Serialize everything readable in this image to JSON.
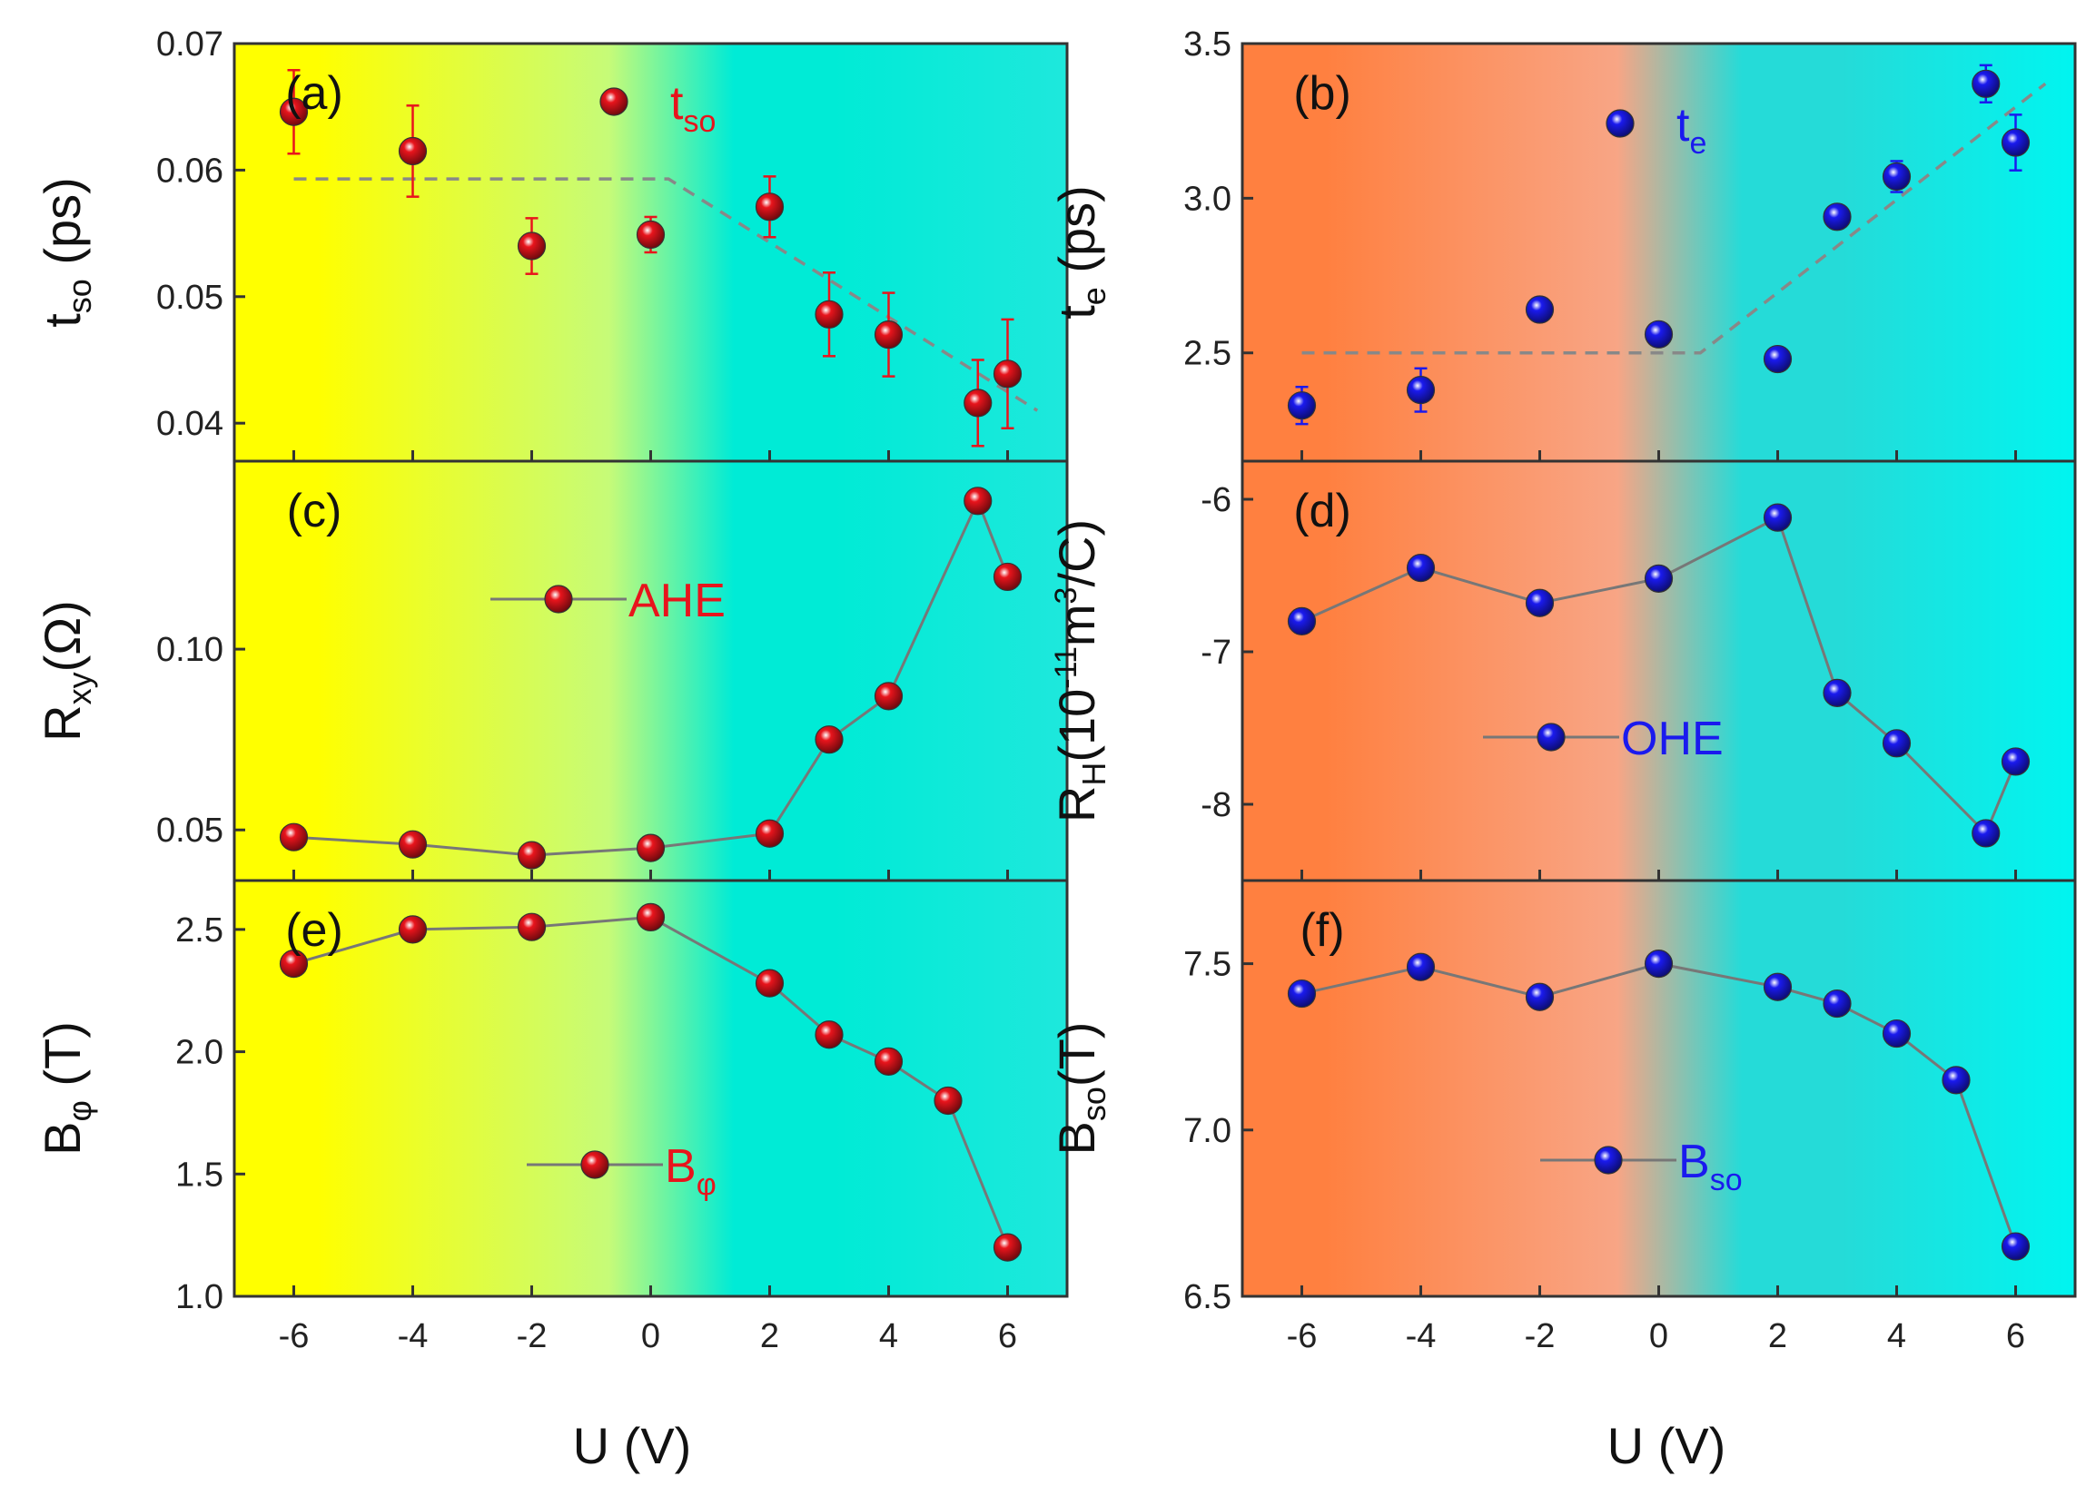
{
  "chart_data": [
    {
      "panel": "(a)",
      "type": "scatter",
      "ylabel": "t",
      "ylabel_sub": "so",
      "ylabel_unit": " (ps)",
      "ylim": [
        0.037,
        0.07
      ],
      "yticks": [
        "0.04",
        "0.05",
        "0.06",
        "0.07"
      ],
      "xticks": [
        "-6",
        "-4",
        "-2",
        "0",
        "2",
        "4",
        "6"
      ],
      "xlim": [
        -7,
        7
      ],
      "marker_color": "#e8141c",
      "background": [
        "#ffff00",
        "#c6fb78",
        "#00ebd6",
        "#1ee8dc"
      ],
      "connect": false,
      "legend": {
        "label": "t",
        "sub": "so",
        "color": "#e8141c",
        "style": "marker"
      },
      "series": [
        {
          "x": [
            -6,
            -4,
            -2,
            0,
            2,
            3,
            4,
            5.5,
            6
          ],
          "y": [
            0.0646,
            0.0615,
            0.054,
            0.0549,
            0.0571,
            0.0486,
            0.047,
            0.0416,
            0.0439
          ],
          "err": [
            0.0033,
            0.0036,
            0.0022,
            0.0014,
            0.0024,
            0.0033,
            0.0033,
            0.0034,
            0.0043
          ]
        }
      ],
      "trend": [
        [
          -6,
          0.0593
        ],
        [
          0.3,
          0.0593
        ],
        [
          6.5,
          0.041
        ]
      ]
    },
    {
      "panel": "(b)",
      "type": "scatter",
      "ylabel": "t",
      "ylabel_sub": "e",
      "ylabel_unit": " (ps)",
      "ylim": [
        2.15,
        3.5
      ],
      "yticks": [
        "2.5",
        "3.0",
        "3.5"
      ],
      "xticks": [
        "-6",
        "-4",
        "-2",
        "0",
        "2",
        "4",
        "6"
      ],
      "xlim": [
        -7,
        7
      ],
      "marker_color": "#1a1aee",
      "background": [
        "#ff8040",
        "#f8a585",
        "#25dbd8",
        "#00f5f0"
      ],
      "connect": false,
      "legend": {
        "label": "t",
        "sub": "e",
        "color": "#1a1aee",
        "style": "marker"
      },
      "series": [
        {
          "x": [
            -6,
            -4,
            -2,
            0,
            2,
            3,
            4,
            5.5,
            6
          ],
          "y": [
            2.33,
            2.38,
            2.64,
            2.56,
            2.48,
            2.94,
            3.07,
            3.37,
            3.18
          ],
          "err": [
            0.06,
            0.07,
            0.02,
            0.02,
            0.02,
            0.02,
            0.05,
            0.06,
            0.09
          ]
        }
      ],
      "trend": [
        [
          -6,
          2.5
        ],
        [
          0.7,
          2.5
        ],
        [
          6.5,
          3.37
        ]
      ]
    },
    {
      "panel": "(c)",
      "type": "line",
      "ylabel": "R",
      "ylabel_sub": "xy",
      "ylabel_unit": "(Ω)",
      "ylim": [
        0.036,
        0.152
      ],
      "yticks": [
        "0.05",
        "0.10"
      ],
      "xticks": [
        "-6",
        "-4",
        "-2",
        "0",
        "2",
        "4",
        "6"
      ],
      "xlim": [
        -7,
        7
      ],
      "marker_color": "#e8141c",
      "background": [
        "#ffff00",
        "#c6fb78",
        "#00ebd6",
        "#1ee8dc"
      ],
      "connect": true,
      "legend": {
        "label": "AHE",
        "sub": "",
        "color": "#e8141c",
        "style": "line"
      },
      "series": [
        {
          "x": [
            -6,
            -4,
            -2,
            0,
            2,
            3,
            4,
            5.5,
            6
          ],
          "y": [
            0.048,
            0.046,
            0.043,
            0.045,
            0.049,
            0.075,
            0.087,
            0.141,
            0.12
          ]
        }
      ]
    },
    {
      "panel": "(d)",
      "type": "line",
      "ylabel": "R",
      "ylabel_sub": "H",
      "ylabel_unit": "(10",
      "ylabel_sup": "-11",
      "ylabel_unit2": "m",
      "ylabel_sup2": "3",
      "ylabel_unit3": "/C)",
      "ylim": [
        -8.5,
        -5.75
      ],
      "yticks": [
        "-8",
        "-7",
        "-6"
      ],
      "xticks": [
        "-6",
        "-4",
        "-2",
        "0",
        "2",
        "4",
        "6"
      ],
      "xlim": [
        -7,
        7
      ],
      "marker_color": "#1a1aee",
      "background": [
        "#ff8040",
        "#f8a585",
        "#25dbd8",
        "#00f5f0"
      ],
      "connect": true,
      "legend": {
        "label": "OHE",
        "sub": "",
        "color": "#1a1aee",
        "style": "line"
      },
      "series": [
        {
          "x": [
            -6,
            -4,
            -2,
            0,
            2,
            3,
            4,
            5.5,
            6
          ],
          "y": [
            -6.8,
            -6.45,
            -6.68,
            -6.52,
            -6.12,
            -7.27,
            -7.6,
            -8.19,
            -7.72
          ]
        }
      ]
    },
    {
      "panel": "(e)",
      "type": "line",
      "ylabel": "B",
      "ylabel_sub": "φ",
      "ylabel_unit": " (T)",
      "ylim": [
        1.0,
        2.7
      ],
      "yticks": [
        "1.0",
        "1.5",
        "2.0",
        "2.5"
      ],
      "xticks": [
        "-6",
        "-4",
        "-2",
        "0",
        "2",
        "4",
        "6"
      ],
      "xlim": [
        -7,
        7
      ],
      "marker_color": "#e8141c",
      "background": [
        "#ffff00",
        "#c6fb78",
        "#00ebd6",
        "#1ee8dc"
      ],
      "connect": true,
      "legend": {
        "label": "B",
        "sub": "φ",
        "color": "#e8141c",
        "style": "line"
      },
      "series": [
        {
          "x": [
            -6,
            -4,
            -2,
            0,
            2,
            3,
            4,
            5,
            6
          ],
          "y": [
            2.36,
            2.5,
            2.51,
            2.55,
            2.28,
            2.07,
            1.96,
            1.8,
            1.2
          ]
        }
      ]
    },
    {
      "panel": "(f)",
      "type": "line",
      "ylabel": "B",
      "ylabel_sub": "so",
      "ylabel_unit": "(T)",
      "ylim": [
        6.5,
        7.75
      ],
      "yticks": [
        "6.5",
        "7.0",
        "7.5"
      ],
      "xticks": [
        "-6",
        "-4",
        "-2",
        "0",
        "2",
        "4",
        "6"
      ],
      "xlim": [
        -7,
        7
      ],
      "marker_color": "#1a1aee",
      "background": [
        "#ff8040",
        "#f8a585",
        "#25dbd8",
        "#00f5f0"
      ],
      "connect": true,
      "legend": {
        "label": "B",
        "sub": "so",
        "color": "#1a1aee",
        "style": "line"
      },
      "series": [
        {
          "x": [
            -6,
            -4,
            -2,
            0,
            2,
            3,
            4,
            5,
            6
          ],
          "y": [
            7.41,
            7.49,
            7.4,
            7.5,
            7.43,
            7.38,
            7.29,
            7.15,
            6.65
          ]
        }
      ]
    }
  ],
  "xlabel_left": "U (V)",
  "xlabel_right": "U (V)"
}
